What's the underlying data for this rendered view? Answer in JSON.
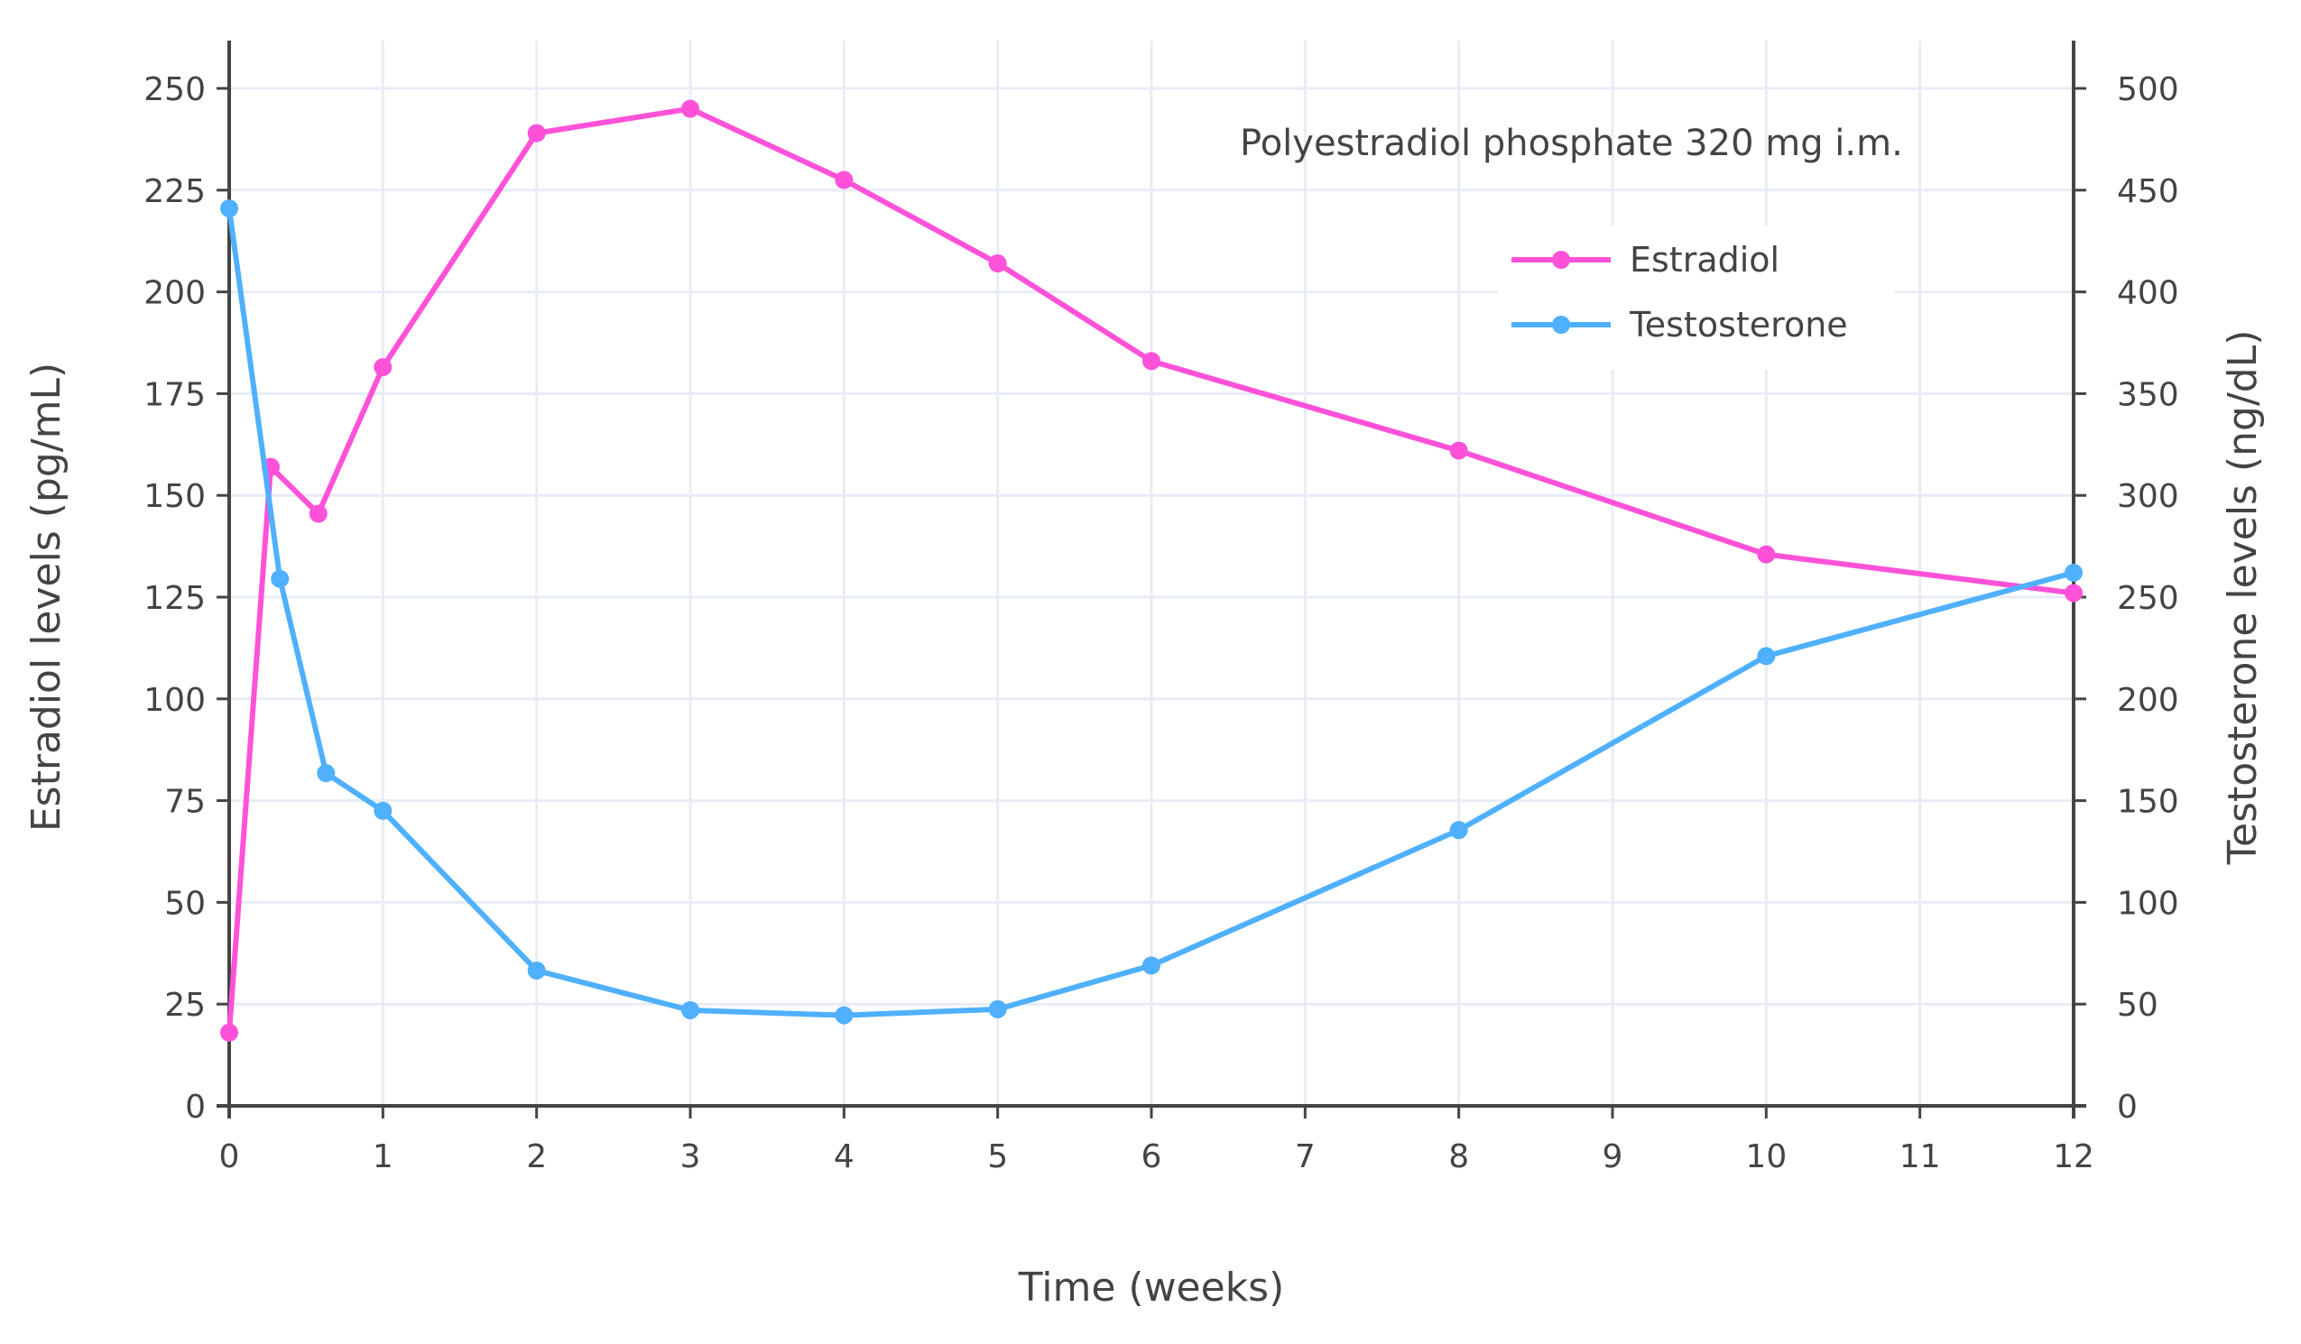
{
  "chart_data": {
    "type": "line",
    "title": "",
    "annotation": "Polyestradiol phosphate 320 mg i.m.",
    "xlabel": "Time (weeks)",
    "ylabel_left": "Estradiol levels (pg/mL)",
    "ylabel_right": "Testosterone levels (ng/dL)",
    "xlim": [
      0,
      12
    ],
    "ylim_left": [
      0,
      260
    ],
    "ylim_right": [
      0,
      520
    ],
    "x_ticks": [
      "0",
      "1",
      "2",
      "3",
      "4",
      "5",
      "6",
      "7",
      "8",
      "9",
      "10",
      "11",
      "12"
    ],
    "y_ticks_left": [
      "0",
      "25",
      "50",
      "75",
      "100",
      "125",
      "150",
      "175",
      "200",
      "225",
      "250"
    ],
    "y_ticks_right": [
      "0",
      "50",
      "100",
      "150",
      "200",
      "250",
      "300",
      "350",
      "400",
      "450",
      "500"
    ],
    "grid": true,
    "legend_position": "top-right",
    "series": [
      {
        "name": "Estradiol",
        "axis": "left",
        "color": "#ff52d9",
        "x": [
          0,
          0.27,
          0.58,
          1,
          2,
          3,
          4,
          5,
          6,
          8,
          10,
          12
        ],
        "y": [
          18,
          157,
          145.5,
          181.5,
          239,
          245,
          227.5,
          207,
          183,
          161,
          135.5,
          126
        ]
      },
      {
        "name": "Testosterone",
        "axis": "right",
        "color": "#4fb0ff",
        "x": [
          0,
          0.33,
          0.63,
          1,
          2,
          3,
          4,
          5,
          6,
          8,
          10,
          12
        ],
        "y": [
          441,
          259,
          163.5,
          145,
          66.5,
          47,
          44.5,
          47.5,
          69,
          135.5,
          221,
          262
        ]
      }
    ]
  }
}
